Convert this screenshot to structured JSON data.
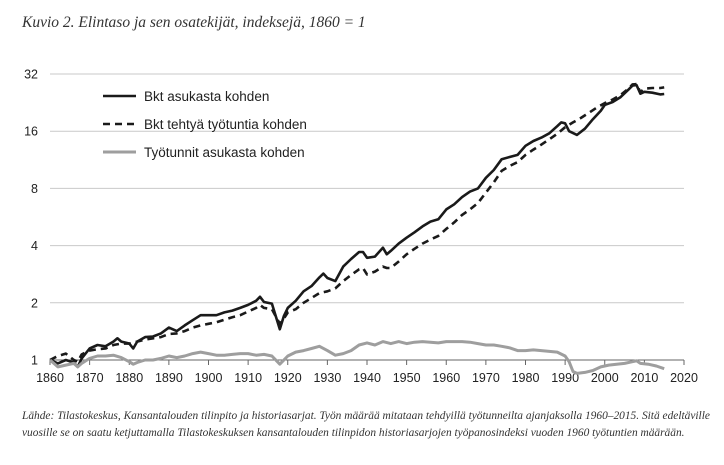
{
  "figure": {
    "caption": "Kuvio 2. Elintaso ja sen osatekijät, indeksejä, 1860 = 1",
    "source": "Lähde: Tilastokeskus, Kansantalouden tilinpito ja historiasarjat. Työn määrää mitataan tehdyillä työtunneilta ajanjaksolla 1960–2015. Sitä edeltäville vuosille se on saatu ketjuttamalla Tilastokeskuksen kansantalouden tilinpidon historiasarjojen työpanosindeksi vuoden 1960 työtuntien määrään."
  },
  "chart_data": {
    "type": "line",
    "title": "",
    "xlabel": "",
    "ylabel": "",
    "xlim": [
      1860,
      2020
    ],
    "ylim": [
      1,
      32
    ],
    "y_scale": "log2",
    "x_ticks": [
      "1860",
      "1870",
      "1880",
      "1890",
      "1900",
      "1910",
      "1920",
      "1930",
      "1940",
      "1950",
      "1960",
      "1970",
      "1980",
      "1990",
      "2000",
      "2010",
      "2020"
    ],
    "y_ticks": [
      "1",
      "2",
      "4",
      "8",
      "16",
      "32"
    ],
    "grid": "horizontal",
    "legend": "top-left",
    "series": [
      {
        "name": "Bkt asukasta kohden",
        "style": "solid",
        "color": "#1a1a1a",
        "points": [
          [
            1860,
            1.0
          ],
          [
            1862,
            0.96
          ],
          [
            1864,
            1.0
          ],
          [
            1866,
            0.97
          ],
          [
            1867,
            0.92
          ],
          [
            1868,
            1.02
          ],
          [
            1870,
            1.15
          ],
          [
            1872,
            1.2
          ],
          [
            1874,
            1.18
          ],
          [
            1876,
            1.25
          ],
          [
            1877,
            1.3
          ],
          [
            1878,
            1.25
          ],
          [
            1880,
            1.22
          ],
          [
            1881,
            1.15
          ],
          [
            1882,
            1.25
          ],
          [
            1884,
            1.32
          ],
          [
            1886,
            1.33
          ],
          [
            1888,
            1.38
          ],
          [
            1890,
            1.48
          ],
          [
            1892,
            1.42
          ],
          [
            1894,
            1.52
          ],
          [
            1896,
            1.62
          ],
          [
            1898,
            1.72
          ],
          [
            1900,
            1.72
          ],
          [
            1902,
            1.72
          ],
          [
            1904,
            1.78
          ],
          [
            1906,
            1.82
          ],
          [
            1908,
            1.88
          ],
          [
            1910,
            1.95
          ],
          [
            1912,
            2.05
          ],
          [
            1913,
            2.15
          ],
          [
            1914,
            2.02
          ],
          [
            1916,
            1.98
          ],
          [
            1918,
            1.45
          ],
          [
            1919,
            1.7
          ],
          [
            1920,
            1.88
          ],
          [
            1922,
            2.05
          ],
          [
            1924,
            2.3
          ],
          [
            1926,
            2.45
          ],
          [
            1928,
            2.72
          ],
          [
            1929,
            2.85
          ],
          [
            1930,
            2.7
          ],
          [
            1932,
            2.6
          ],
          [
            1934,
            3.1
          ],
          [
            1936,
            3.4
          ],
          [
            1938,
            3.7
          ],
          [
            1939,
            3.7
          ],
          [
            1940,
            3.45
          ],
          [
            1942,
            3.5
          ],
          [
            1944,
            3.9
          ],
          [
            1945,
            3.6
          ],
          [
            1946,
            3.75
          ],
          [
            1948,
            4.1
          ],
          [
            1950,
            4.4
          ],
          [
            1952,
            4.7
          ],
          [
            1954,
            5.05
          ],
          [
            1956,
            5.35
          ],
          [
            1958,
            5.5
          ],
          [
            1960,
            6.2
          ],
          [
            1962,
            6.6
          ],
          [
            1964,
            7.2
          ],
          [
            1966,
            7.7
          ],
          [
            1968,
            8.0
          ],
          [
            1970,
            9.1
          ],
          [
            1972,
            10.0
          ],
          [
            1974,
            11.4
          ],
          [
            1976,
            11.7
          ],
          [
            1978,
            12.0
          ],
          [
            1980,
            13.4
          ],
          [
            1982,
            14.2
          ],
          [
            1984,
            14.8
          ],
          [
            1986,
            15.6
          ],
          [
            1988,
            17.0
          ],
          [
            1989,
            17.8
          ],
          [
            1990,
            17.6
          ],
          [
            1991,
            16.0
          ],
          [
            1993,
            15.3
          ],
          [
            1995,
            16.5
          ],
          [
            1997,
            18.5
          ],
          [
            1999,
            20.5
          ],
          [
            2000,
            22.0
          ],
          [
            2002,
            22.8
          ],
          [
            2004,
            24.2
          ],
          [
            2006,
            26.5
          ],
          [
            2007,
            27.8
          ],
          [
            2008,
            28.0
          ],
          [
            2009,
            25.2
          ],
          [
            2010,
            25.8
          ],
          [
            2012,
            25.5
          ],
          [
            2014,
            25.0
          ],
          [
            2015,
            25.1
          ]
        ]
      },
      {
        "name": "Bkt tehtyä työtuntia kohden",
        "style": "dashed",
        "color": "#1a1a1a",
        "points": [
          [
            1860,
            1.0
          ],
          [
            1862,
            1.05
          ],
          [
            1864,
            1.08
          ],
          [
            1866,
            1.0
          ],
          [
            1867,
            0.98
          ],
          [
            1868,
            1.07
          ],
          [
            1870,
            1.12
          ],
          [
            1872,
            1.14
          ],
          [
            1874,
            1.15
          ],
          [
            1876,
            1.2
          ],
          [
            1878,
            1.22
          ],
          [
            1880,
            1.22
          ],
          [
            1882,
            1.25
          ],
          [
            1884,
            1.28
          ],
          [
            1886,
            1.3
          ],
          [
            1888,
            1.32
          ],
          [
            1890,
            1.37
          ],
          [
            1892,
            1.38
          ],
          [
            1894,
            1.42
          ],
          [
            1896,
            1.48
          ],
          [
            1898,
            1.52
          ],
          [
            1900,
            1.55
          ],
          [
            1902,
            1.58
          ],
          [
            1904,
            1.63
          ],
          [
            1906,
            1.68
          ],
          [
            1908,
            1.72
          ],
          [
            1910,
            1.8
          ],
          [
            1912,
            1.88
          ],
          [
            1913,
            1.95
          ],
          [
            1914,
            1.88
          ],
          [
            1916,
            1.85
          ],
          [
            1918,
            1.55
          ],
          [
            1919,
            1.65
          ],
          [
            1920,
            1.78
          ],
          [
            1922,
            1.85
          ],
          [
            1924,
            2.0
          ],
          [
            1926,
            2.12
          ],
          [
            1928,
            2.25
          ],
          [
            1930,
            2.3
          ],
          [
            1932,
            2.38
          ],
          [
            1934,
            2.6
          ],
          [
            1936,
            2.8
          ],
          [
            1938,
            3.0
          ],
          [
            1939,
            3.05
          ],
          [
            1940,
            2.82
          ],
          [
            1942,
            2.92
          ],
          [
            1944,
            3.1
          ],
          [
            1945,
            3.05
          ],
          [
            1946,
            3.05
          ],
          [
            1948,
            3.3
          ],
          [
            1950,
            3.6
          ],
          [
            1952,
            3.85
          ],
          [
            1954,
            4.1
          ],
          [
            1956,
            4.3
          ],
          [
            1958,
            4.5
          ],
          [
            1960,
            4.9
          ],
          [
            1962,
            5.3
          ],
          [
            1964,
            5.8
          ],
          [
            1966,
            6.2
          ],
          [
            1968,
            6.7
          ],
          [
            1970,
            7.6
          ],
          [
            1972,
            8.6
          ],
          [
            1974,
            9.9
          ],
          [
            1976,
            10.5
          ],
          [
            1978,
            11.0
          ],
          [
            1980,
            12.0
          ],
          [
            1982,
            12.8
          ],
          [
            1984,
            13.6
          ],
          [
            1986,
            14.5
          ],
          [
            1988,
            15.5
          ],
          [
            1990,
            16.8
          ],
          [
            1992,
            17.8
          ],
          [
            1994,
            18.8
          ],
          [
            1996,
            20.0
          ],
          [
            1998,
            21.3
          ],
          [
            2000,
            22.5
          ],
          [
            2002,
            23.5
          ],
          [
            2004,
            24.8
          ],
          [
            2006,
            26.8
          ],
          [
            2007,
            28.2
          ],
          [
            2008,
            28.3
          ],
          [
            2009,
            25.7
          ],
          [
            2010,
            26.8
          ],
          [
            2012,
            27.0
          ],
          [
            2014,
            27.0
          ],
          [
            2015,
            27.2
          ]
        ]
      },
      {
        "name": "Työtunnit asukasta kohden",
        "style": "solid",
        "color": "#9e9e9e",
        "points": [
          [
            1860,
            1.0
          ],
          [
            1862,
            0.92
          ],
          [
            1864,
            0.94
          ],
          [
            1866,
            0.96
          ],
          [
            1867,
            0.92
          ],
          [
            1868,
            0.96
          ],
          [
            1870,
            1.02
          ],
          [
            1872,
            1.05
          ],
          [
            1874,
            1.05
          ],
          [
            1876,
            1.06
          ],
          [
            1878,
            1.03
          ],
          [
            1880,
            0.98
          ],
          [
            1881,
            0.95
          ],
          [
            1882,
            0.97
          ],
          [
            1884,
            1.0
          ],
          [
            1886,
            1.0
          ],
          [
            1888,
            1.02
          ],
          [
            1890,
            1.05
          ],
          [
            1892,
            1.03
          ],
          [
            1894,
            1.05
          ],
          [
            1896,
            1.08
          ],
          [
            1898,
            1.1
          ],
          [
            1900,
            1.08
          ],
          [
            1902,
            1.06
          ],
          [
            1904,
            1.06
          ],
          [
            1906,
            1.07
          ],
          [
            1908,
            1.08
          ],
          [
            1910,
            1.08
          ],
          [
            1912,
            1.06
          ],
          [
            1914,
            1.07
          ],
          [
            1916,
            1.05
          ],
          [
            1918,
            0.95
          ],
          [
            1920,
            1.05
          ],
          [
            1922,
            1.1
          ],
          [
            1924,
            1.12
          ],
          [
            1926,
            1.15
          ],
          [
            1928,
            1.18
          ],
          [
            1930,
            1.12
          ],
          [
            1932,
            1.06
          ],
          [
            1934,
            1.08
          ],
          [
            1936,
            1.12
          ],
          [
            1938,
            1.2
          ],
          [
            1940,
            1.23
          ],
          [
            1942,
            1.2
          ],
          [
            1944,
            1.25
          ],
          [
            1946,
            1.22
          ],
          [
            1948,
            1.25
          ],
          [
            1950,
            1.22
          ],
          [
            1952,
            1.24
          ],
          [
            1954,
            1.25
          ],
          [
            1956,
            1.24
          ],
          [
            1958,
            1.23
          ],
          [
            1960,
            1.25
          ],
          [
            1962,
            1.25
          ],
          [
            1964,
            1.25
          ],
          [
            1966,
            1.24
          ],
          [
            1968,
            1.22
          ],
          [
            1970,
            1.2
          ],
          [
            1972,
            1.2
          ],
          [
            1974,
            1.18
          ],
          [
            1976,
            1.16
          ],
          [
            1978,
            1.12
          ],
          [
            1980,
            1.12
          ],
          [
            1982,
            1.13
          ],
          [
            1984,
            1.12
          ],
          [
            1986,
            1.11
          ],
          [
            1988,
            1.1
          ],
          [
            1990,
            1.05
          ],
          [
            1991,
            0.98
          ],
          [
            1992,
            0.87
          ],
          [
            1993,
            0.85
          ],
          [
            1995,
            0.86
          ],
          [
            1997,
            0.88
          ],
          [
            1999,
            0.92
          ],
          [
            2001,
            0.94
          ],
          [
            2003,
            0.95
          ],
          [
            2005,
            0.96
          ],
          [
            2007,
            0.98
          ],
          [
            2008,
            0.99
          ],
          [
            2009,
            0.96
          ],
          [
            2011,
            0.95
          ],
          [
            2013,
            0.93
          ],
          [
            2015,
            0.9
          ]
        ]
      }
    ]
  }
}
